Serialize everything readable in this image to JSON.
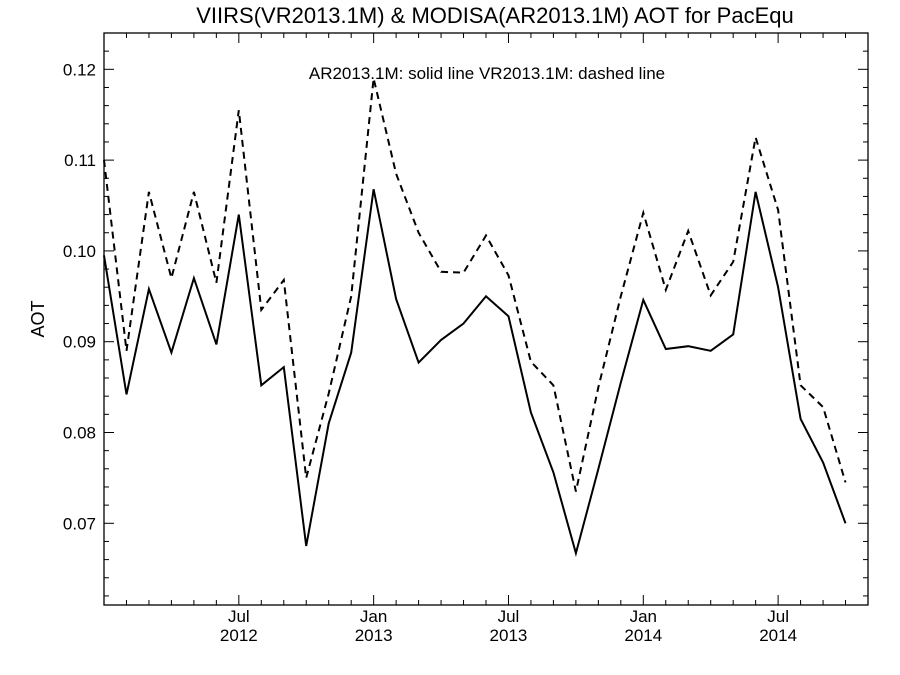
{
  "chart_data": {
    "type": "line",
    "title": "VIIRS(VR2013.1M) & MODISA(AR2013.1M)  AOT for PacEqu",
    "annotation": "AR2013.1M: solid line   VR2013.1M: dashed line",
    "ylabel": "AOT",
    "xlabel": "",
    "ylim": [
      0.061,
      0.124
    ],
    "yticks": [
      "0.07",
      "0.08",
      "0.09",
      "0.10",
      "0.11",
      "0.12"
    ],
    "ytick_values": [
      0.07,
      0.08,
      0.09,
      0.1,
      0.11,
      0.12
    ],
    "xlim": [
      "2012-01",
      "2014-11"
    ],
    "xtick_labels": [
      {
        "month": "Jul",
        "year": "2012",
        "x": "2012-07"
      },
      {
        "month": "Jan",
        "year": "2013",
        "x": "2013-01"
      },
      {
        "month": "Jul",
        "year": "2013",
        "x": "2013-07"
      },
      {
        "month": "Jan",
        "year": "2014",
        "x": "2014-01"
      },
      {
        "month": "Jul",
        "year": "2014",
        "x": "2014-07"
      }
    ],
    "grid": false,
    "x": [
      "2012-01",
      "2012-02",
      "2012-03",
      "2012-04",
      "2012-05",
      "2012-06",
      "2012-07",
      "2012-08",
      "2012-09",
      "2012-10",
      "2012-11",
      "2012-12",
      "2013-01",
      "2013-02",
      "2013-03",
      "2013-04",
      "2013-05",
      "2013-06",
      "2013-07",
      "2013-08",
      "2013-09",
      "2013-10",
      "2013-11",
      "2013-12",
      "2014-01",
      "2014-02",
      "2014-03",
      "2014-04",
      "2014-05",
      "2014-06",
      "2014-07",
      "2014-08",
      "2014-09",
      "2014-10"
    ],
    "series": [
      {
        "name": "AR2013.1M",
        "style": "solid",
        "color": "#000000",
        "values": [
          0.0995,
          0.0842,
          0.0958,
          0.0888,
          0.097,
          0.0897,
          0.104,
          0.0852,
          0.0872,
          0.0675,
          0.081,
          0.0888,
          0.1068,
          0.0947,
          0.0877,
          0.0902,
          0.092,
          0.095,
          0.0928,
          0.0822,
          0.0756,
          0.0667,
          0.076,
          0.0855,
          0.0946,
          0.0892,
          0.0895,
          0.089,
          0.0908,
          0.1065,
          0.096,
          0.0815,
          0.0767,
          0.07
        ]
      },
      {
        "name": "VR2013.1M",
        "style": "dashed",
        "color": "#000000",
        "values": [
          0.11,
          0.089,
          0.1065,
          0.097,
          0.1065,
          0.0965,
          0.1155,
          0.0935,
          0.0968,
          0.075,
          0.0843,
          0.095,
          0.119,
          0.1085,
          0.102,
          0.0977,
          0.0976,
          0.1017,
          0.0973,
          0.0878,
          0.0852,
          0.0735,
          0.085,
          0.095,
          0.1042,
          0.0957,
          0.1022,
          0.0951,
          0.0988,
          0.1125,
          0.1045,
          0.0852,
          0.0828,
          0.0745
        ]
      }
    ]
  }
}
